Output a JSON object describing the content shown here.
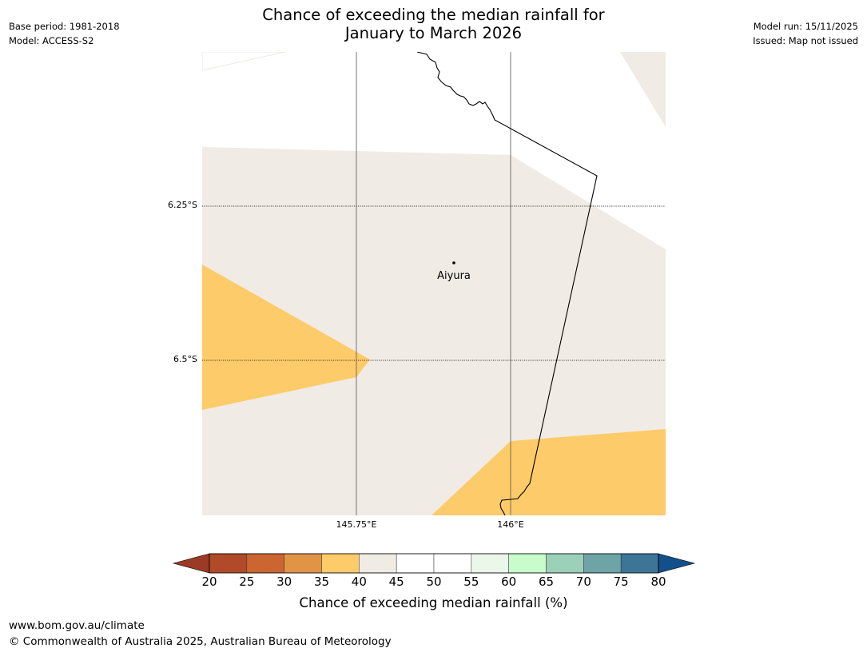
{
  "header": {
    "base_period": "Base period: 1981-2018",
    "model": "Model: ACCESS-S2",
    "model_run": "Model run: 15/11/2025",
    "issued": "Issued: Map not issued",
    "title_line1": "Chance of exceeding the median rainfall for",
    "title_line2": "January to March 2026"
  },
  "map": {
    "place": {
      "name": "Aiyura"
    },
    "latitude_labels": [
      "6.25°S",
      "6.5°S"
    ],
    "longitude_labels": [
      "145.75°E",
      "146°E"
    ],
    "colors": {
      "band_40_45": "#f0ebe5",
      "band_35_40": "#fdcb69",
      "band_50_55": "#ffffff",
      "coastline": "#000000",
      "gridline": "#555555"
    }
  },
  "colorbar": {
    "title": "Chance of exceeding median rainfall (%)",
    "tick_labels": [
      "20",
      "25",
      "30",
      "35",
      "40",
      "45",
      "50",
      "55",
      "60",
      "65",
      "70",
      "75",
      "80"
    ],
    "below_color": "#9c3b25",
    "above_color": "#134f8a",
    "bands": [
      {
        "range": "20-25",
        "color": "#b04a28"
      },
      {
        "range": "25-30",
        "color": "#cc6631"
      },
      {
        "range": "30-35",
        "color": "#e29446"
      },
      {
        "range": "35-40",
        "color": "#fdcb69"
      },
      {
        "range": "40-45",
        "color": "#f0ebe5"
      },
      {
        "range": "45-50",
        "color": "#ffffff"
      },
      {
        "range": "50-55",
        "color": "#ffffff"
      },
      {
        "range": "55-60",
        "color": "#ebf7e9"
      },
      {
        "range": "60-65",
        "color": "#c8fcca"
      },
      {
        "range": "65-70",
        "color": "#9cd1b9"
      },
      {
        "range": "70-75",
        "color": "#6ea4a6"
      },
      {
        "range": "75-80",
        "color": "#3d7597"
      }
    ]
  },
  "footer": {
    "website": "www.bom.gov.au/climate",
    "copyright": "© Commonwealth of Australia 2025, Australian Bureau of Meteorology"
  }
}
